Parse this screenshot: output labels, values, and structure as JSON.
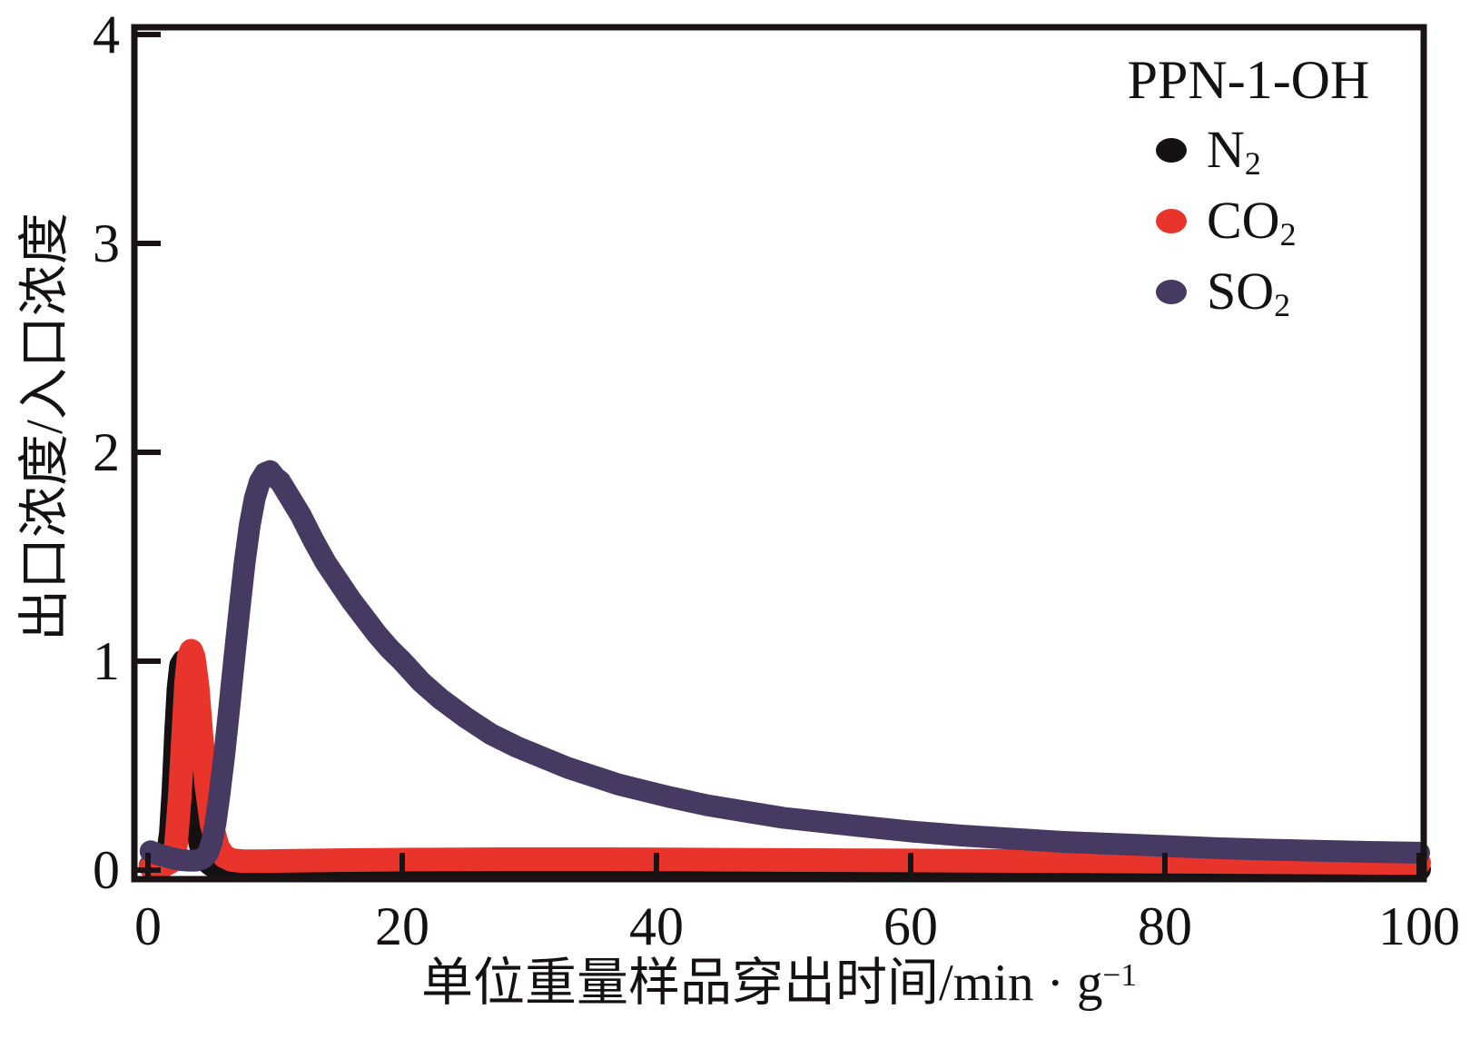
{
  "figure": {
    "background": "#ffffff",
    "frame_color": "#1a1315",
    "text_color": "#151011"
  },
  "chart_data": {
    "type": "scatter",
    "title": "",
    "xlabel": {
      "main": "单位重量样品穿出时间/min · g",
      "sup": "−1"
    },
    "ylabel": "出口浓度/入口浓度",
    "xlim": [
      0,
      100
    ],
    "ylim": [
      0,
      4
    ],
    "x_ticks": [
      "0",
      "20",
      "40",
      "60",
      "80",
      "100"
    ],
    "y_ticks": [
      "0",
      "1",
      "2",
      "3",
      "4"
    ],
    "grid": false,
    "legend": {
      "title": "PPN-1-OH",
      "position": "top-right",
      "entries": [
        {
          "base": "N",
          "sub": "2",
          "color": "#151011"
        },
        {
          "base": "CO",
          "sub": "2",
          "color": "#e8342a"
        },
        {
          "base": "SO",
          "sub": "2",
          "color": "#473a62"
        }
      ]
    },
    "series": [
      {
        "name": "N2",
        "color": "#151011",
        "stroke_width": 26,
        "points": [
          [
            0.2,
            0.02
          ],
          [
            0.9,
            0.025
          ],
          [
            1.3,
            0.04
          ],
          [
            1.6,
            0.09
          ],
          [
            1.8,
            0.18
          ],
          [
            2.0,
            0.38
          ],
          [
            2.2,
            0.65
          ],
          [
            2.4,
            0.87
          ],
          [
            2.6,
            0.98
          ],
          [
            2.8,
            1.0
          ],
          [
            3.0,
            0.93
          ],
          [
            3.2,
            0.78
          ],
          [
            3.5,
            0.52
          ],
          [
            3.8,
            0.28
          ],
          [
            4.1,
            0.13
          ],
          [
            4.5,
            0.05
          ],
          [
            5.0,
            0.025
          ],
          [
            5.6,
            0.015
          ],
          [
            6.5,
            0.01
          ],
          [
            8,
            0.008
          ],
          [
            12,
            0.006
          ],
          [
            20,
            0.005
          ],
          [
            35,
            0.005
          ],
          [
            55,
            0.004
          ],
          [
            75,
            0.004
          ],
          [
            100,
            0.004
          ]
        ]
      },
      {
        "name": "CO2",
        "color": "#e8342a",
        "stroke_width": 26,
        "points": [
          [
            0.2,
            0.015
          ],
          [
            1.2,
            0.02
          ],
          [
            1.8,
            0.04
          ],
          [
            2.2,
            0.12
          ],
          [
            2.5,
            0.35
          ],
          [
            2.8,
            0.68
          ],
          [
            3.0,
            0.9
          ],
          [
            3.2,
            1.02
          ],
          [
            3.4,
            1.05
          ],
          [
            3.6,
            1.02
          ],
          [
            3.9,
            0.88
          ],
          [
            4.2,
            0.65
          ],
          [
            4.6,
            0.4
          ],
          [
            5.0,
            0.22
          ],
          [
            5.5,
            0.11
          ],
          [
            6.0,
            0.065
          ],
          [
            6.6,
            0.048
          ],
          [
            7.5,
            0.042
          ],
          [
            9,
            0.042
          ],
          [
            12,
            0.045
          ],
          [
            16,
            0.048
          ],
          [
            20,
            0.05
          ],
          [
            28,
            0.052
          ],
          [
            36,
            0.052
          ],
          [
            44,
            0.05
          ],
          [
            52,
            0.048
          ],
          [
            60,
            0.046
          ],
          [
            70,
            0.043
          ],
          [
            80,
            0.04
          ],
          [
            90,
            0.037
          ],
          [
            100,
            0.034
          ]
        ]
      },
      {
        "name": "SO2",
        "color": "#473a62",
        "stroke_width": 24,
        "points": [
          [
            0.2,
            0.09
          ],
          [
            0.8,
            0.075
          ],
          [
            1.4,
            0.065
          ],
          [
            2.0,
            0.055
          ],
          [
            2.6,
            0.048
          ],
          [
            3.2,
            0.045
          ],
          [
            3.8,
            0.045
          ],
          [
            4.3,
            0.055
          ],
          [
            4.7,
            0.08
          ],
          [
            5.0,
            0.13
          ],
          [
            5.3,
            0.22
          ],
          [
            5.6,
            0.35
          ],
          [
            6.0,
            0.55
          ],
          [
            6.4,
            0.78
          ],
          [
            6.8,
            1.02
          ],
          [
            7.2,
            1.25
          ],
          [
            7.6,
            1.47
          ],
          [
            8.0,
            1.65
          ],
          [
            8.4,
            1.78
          ],
          [
            8.8,
            1.86
          ],
          [
            9.2,
            1.9
          ],
          [
            9.6,
            1.91
          ],
          [
            10.0,
            1.88
          ],
          [
            10.4,
            1.86
          ],
          [
            10.8,
            1.82
          ],
          [
            11.4,
            1.76
          ],
          [
            12,
            1.7
          ],
          [
            13,
            1.58
          ],
          [
            14,
            1.47
          ],
          [
            15,
            1.38
          ],
          [
            16,
            1.29
          ],
          [
            17,
            1.21
          ],
          [
            18,
            1.13
          ],
          [
            19,
            1.06
          ],
          [
            20,
            1.0
          ],
          [
            21.5,
            0.9
          ],
          [
            23,
            0.82
          ],
          [
            25,
            0.73
          ],
          [
            27,
            0.65
          ],
          [
            29,
            0.59
          ],
          [
            31,
            0.54
          ],
          [
            33,
            0.49
          ],
          [
            35,
            0.45
          ],
          [
            37,
            0.41
          ],
          [
            39,
            0.38
          ],
          [
            41,
            0.35
          ],
          [
            44,
            0.31
          ],
          [
            47,
            0.28
          ],
          [
            50,
            0.25
          ],
          [
            53,
            0.23
          ],
          [
            56,
            0.21
          ],
          [
            60,
            0.185
          ],
          [
            64,
            0.165
          ],
          [
            68,
            0.15
          ],
          [
            72,
            0.135
          ],
          [
            76,
            0.125
          ],
          [
            80,
            0.115
          ],
          [
            84,
            0.105
          ],
          [
            88,
            0.098
          ],
          [
            92,
            0.092
          ],
          [
            96,
            0.087
          ],
          [
            100,
            0.083
          ]
        ]
      }
    ]
  }
}
